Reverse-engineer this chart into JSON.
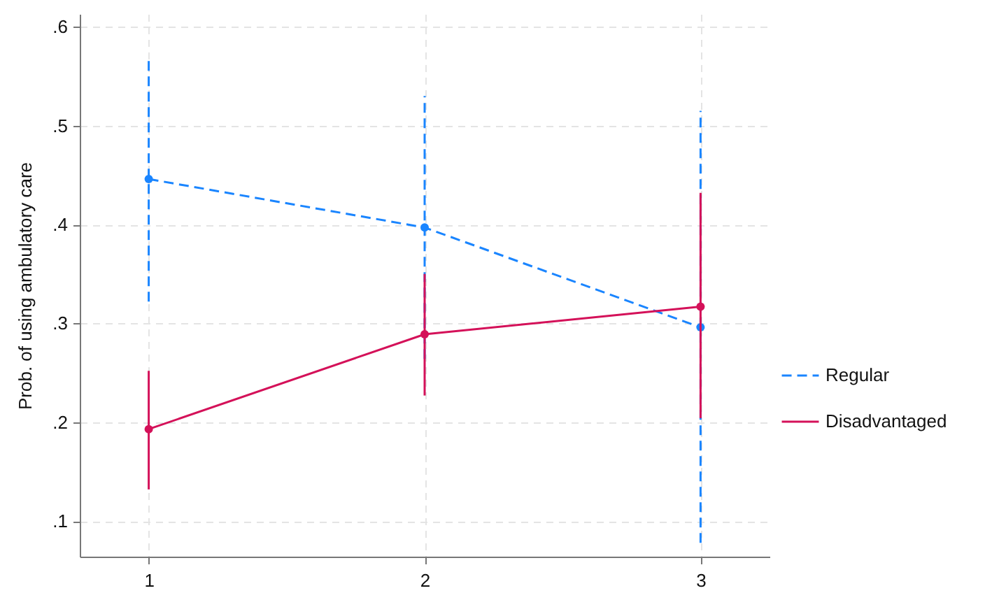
{
  "chart_data": {
    "type": "line",
    "ylabel": "Prob. of using ambulatory care",
    "x": [
      1,
      2,
      3
    ],
    "series": [
      {
        "name": "Regular",
        "color": "#1a85ff",
        "line_style": "dashed",
        "values": [
          0.446,
          0.397,
          0.296
        ],
        "errors": [
          [
            0.322,
            0.566
          ],
          [
            0.264,
            0.53
          ],
          [
            0.078,
            0.515
          ]
        ]
      },
      {
        "name": "Disadvantaged",
        "color": "#d41159",
        "line_style": "solid",
        "values": [
          0.193,
          0.289,
          0.317
        ],
        "errors": [
          [
            0.132,
            0.252
          ],
          [
            0.227,
            0.35
          ],
          [
            0.204,
            0.432
          ]
        ]
      }
    ],
    "xlim": [
      0.75,
      3.25
    ],
    "xticks": [
      1,
      2,
      3
    ],
    "ylim": [
      0.064,
      0.613
    ],
    "yticks": [
      {
        "value": 0.1,
        "label": ".1"
      },
      {
        "value": 0.2,
        "label": ".2"
      },
      {
        "value": 0.3,
        "label": ".3"
      },
      {
        "value": 0.4,
        "label": ".4"
      },
      {
        "value": 0.5,
        "label": ".5"
      },
      {
        "value": 0.6,
        "label": ".6"
      }
    ],
    "grid": true,
    "legend": "right",
    "marker": "circle"
  }
}
